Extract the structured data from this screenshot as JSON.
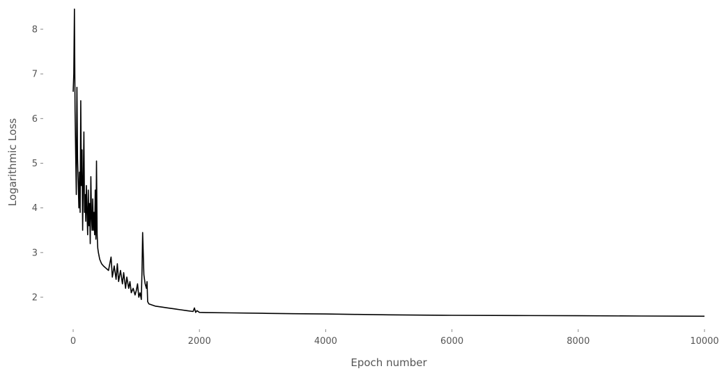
{
  "chart_data": {
    "type": "line",
    "title": "",
    "xlabel": "Epoch number",
    "ylabel": "Logarithmic Loss",
    "xlim": [
      0,
      10000
    ],
    "ylim": [
      1.3,
      8.5
    ],
    "grid": false,
    "xticks": [
      0,
      2000,
      4000,
      6000,
      8000,
      10000
    ],
    "xtick_labels": [
      "0",
      "2000",
      "4000",
      "6000",
      "8000",
      "10000"
    ],
    "yticks": [
      2,
      3,
      4,
      5,
      6,
      7,
      8
    ],
    "ytick_labels": [
      "2",
      "3",
      "4",
      "5",
      "6",
      "7",
      "8"
    ],
    "line_color": "#000000",
    "series": [
      {
        "x": [
          0,
          10,
          20,
          30,
          40,
          50,
          60,
          70,
          80,
          90,
          100,
          110,
          120,
          130,
          140,
          150,
          160,
          170,
          180,
          190,
          200,
          210,
          220,
          230,
          240,
          250,
          260,
          270,
          280,
          290,
          300,
          310,
          320,
          330,
          340,
          350,
          360,
          370,
          380,
          390,
          400,
          420,
          450,
          480,
          520,
          560,
          600,
          620,
          650,
          680,
          700,
          720,
          750,
          780,
          800,
          830,
          850,
          880,
          900,
          920,
          950,
          980,
          1000,
          1020,
          1040,
          1060,
          1080,
          1090,
          1100,
          1120,
          1140,
          1160,
          1170,
          1180,
          1200,
          1300,
          1400,
          1500,
          1600,
          1700,
          1800,
          1900,
          1920,
          1940,
          1960,
          2000,
          2100,
          2500,
          3000,
          3500,
          4000,
          4500,
          5000,
          5500,
          6000,
          7000,
          8000,
          9000,
          10000
        ],
        "y": [
          6.6,
          7.0,
          8.45,
          6.2,
          5.2,
          4.3,
          6.7,
          5.1,
          4.6,
          4.0,
          4.8,
          3.9,
          6.4,
          4.5,
          5.3,
          3.5,
          4.6,
          5.7,
          3.9,
          4.3,
          3.7,
          4.5,
          3.9,
          3.4,
          4.4,
          3.6,
          4.1,
          3.2,
          4.7,
          3.8,
          3.5,
          4.2,
          3.5,
          3.9,
          3.4,
          4.4,
          3.3,
          5.05,
          3.4,
          3.1,
          3.0,
          2.85,
          2.75,
          2.7,
          2.65,
          2.6,
          2.9,
          2.45,
          2.7,
          2.4,
          2.75,
          2.35,
          2.6,
          2.3,
          2.55,
          2.2,
          2.45,
          2.2,
          2.35,
          2.1,
          2.2,
          2.05,
          2.15,
          2.3,
          2.0,
          2.1,
          1.95,
          2.6,
          3.45,
          2.5,
          2.3,
          2.2,
          2.35,
          1.9,
          1.85,
          1.8,
          1.78,
          1.76,
          1.74,
          1.72,
          1.7,
          1.68,
          1.76,
          1.66,
          1.7,
          1.66,
          1.655,
          1.65,
          1.64,
          1.63,
          1.625,
          1.615,
          1.605,
          1.6,
          1.595,
          1.59,
          1.585,
          1.58,
          1.575
        ]
      }
    ]
  }
}
